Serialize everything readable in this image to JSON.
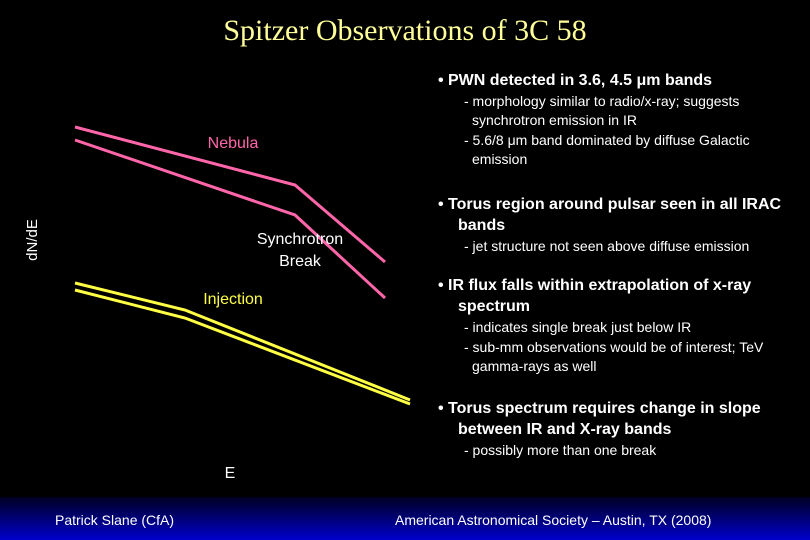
{
  "title": "Spitzer Observations of 3C 58",
  "plot": {
    "y_axis_label": "dN/dE",
    "x_axis_label": "E",
    "nebula_label": "Nebula",
    "break_label": "Synchrotron Break",
    "injection_label": "Injection"
  },
  "bullets": [
    {
      "text": "PWN detected in 3.6, 4.5 μm bands",
      "subs": [
        "- morphology similar to radio/x-ray; suggests synchrotron emission in IR",
        "- 5.6/8 μm band dominated by diffuse Galactic emission"
      ]
    },
    {
      "text": "Torus region around pulsar seen in all IRAC bands",
      "subs": [
        "- jet structure not seen above diffuse emission"
      ]
    },
    {
      "text": "IR flux falls within extrapolation of x-ray spectrum",
      "subs": [
        "- indicates single break just below IR",
        "- sub-mm observations would be of interest; TeV gamma-rays as well"
      ]
    },
    {
      "text": "Torus spectrum requires change in slope between IR and X-ray bands",
      "subs": [
        "- possibly more than one break"
      ]
    }
  ],
  "footer": {
    "left": "Patrick Slane (CfA)",
    "right": "American Astronomical Society – Austin, TX (2008)"
  }
}
